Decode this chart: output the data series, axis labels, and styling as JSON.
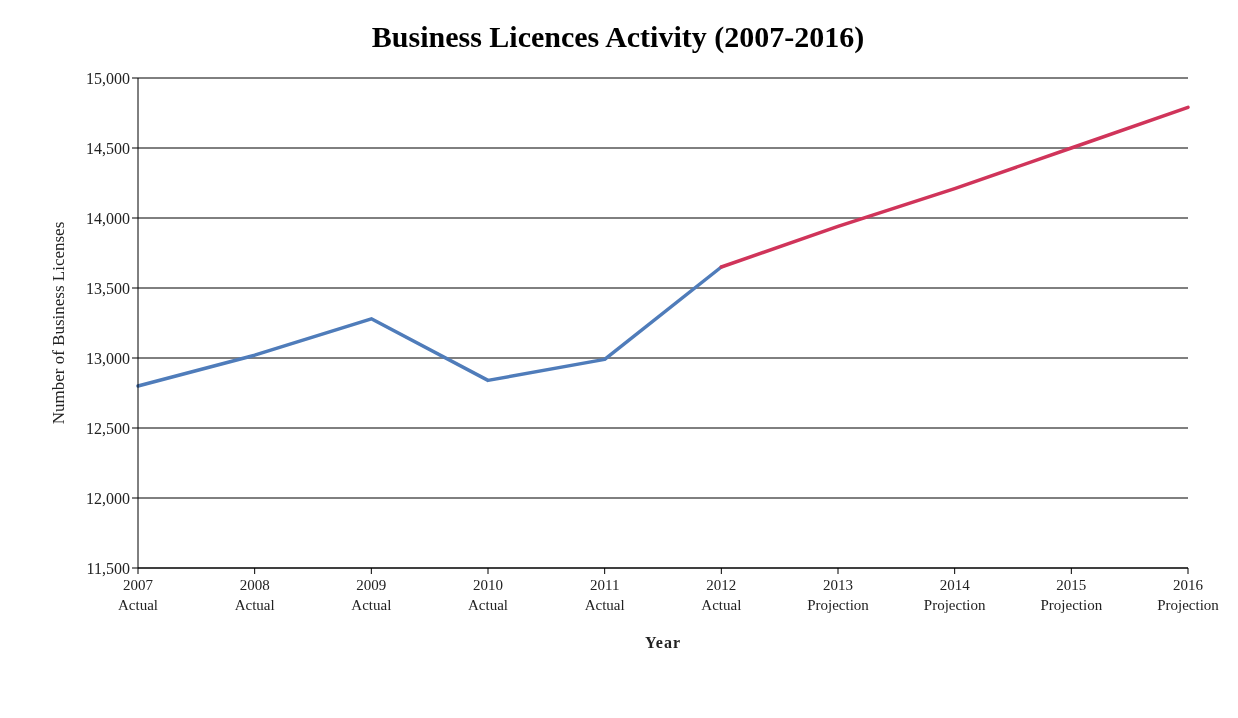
{
  "chart_data": {
    "type": "line",
    "title": "Business Licences Activity (2007-2016)",
    "xlabel": "Year",
    "ylabel": "Number of Business Licenses",
    "categories": [
      "2007\nActual",
      "2008\nActual",
      "2009\nActual",
      "2010\nActual",
      "2011\nActual",
      "2012\nActual",
      "2013\nProjection",
      "2014\nProjection",
      "2015\nProjection",
      "2016\nProjection"
    ],
    "series": [
      {
        "color": "#4f7cba",
        "values": [
          12800,
          13020,
          13280,
          12840,
          12990,
          13650,
          null,
          null,
          null,
          null
        ]
      },
      {
        "color": "#d0345a",
        "values": [
          null,
          null,
          null,
          null,
          null,
          13650,
          13940,
          14210,
          14500,
          14790
        ]
      }
    ],
    "ylim": [
      11500,
      15000
    ],
    "yticks": [
      {
        "value": 11500,
        "label": "11,500"
      },
      {
        "value": 12000,
        "label": "12,000"
      },
      {
        "value": 12500,
        "label": "12,500"
      },
      {
        "value": 13000,
        "label": "13,000"
      },
      {
        "value": 13500,
        "label": "13,500"
      },
      {
        "value": 14000,
        "label": "14,000"
      },
      {
        "value": 14500,
        "label": "14,500"
      },
      {
        "value": 15000,
        "label": "15,000"
      }
    ],
    "grid": "y",
    "marker": "none",
    "line_style": "solid",
    "legend": false
  }
}
